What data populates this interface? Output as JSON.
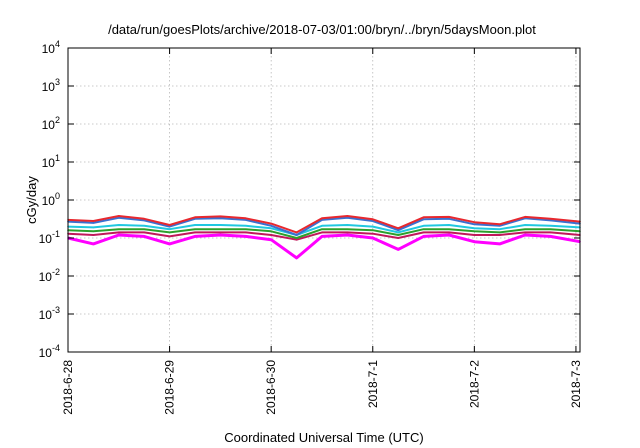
{
  "chart_data": {
    "type": "line",
    "title": "/data/run/goesPlots/archive/2018-07-03/01:00/bryn/../bryn/5daysMoon.plot",
    "xlabel": "Coordinated Universal Time (UTC)",
    "ylabel": "cGy/day",
    "yscale": "log",
    "ylim": [
      0.0001,
      10000
    ],
    "xlim": [
      "2018-06-28",
      "2018-07-03 01:00"
    ],
    "grid": true,
    "x_ticks": [
      "2018-6-28",
      "2018-6-29",
      "2018-6-30",
      "2018-7-1",
      "2018-7-2",
      "2018-7-3"
    ],
    "y_ticks": [
      {
        "base": "10",
        "exp": "-4"
      },
      {
        "base": "10",
        "exp": "-3"
      },
      {
        "base": "10",
        "exp": "-2"
      },
      {
        "base": "10",
        "exp": "-1"
      },
      {
        "base": "10",
        "exp": "0"
      },
      {
        "base": "10",
        "exp": "1"
      },
      {
        "base": "10",
        "exp": "2"
      },
      {
        "base": "10",
        "exp": "3"
      },
      {
        "base": "10",
        "exp": "4"
      }
    ],
    "x_day_values": [
      0,
      0.25,
      0.5,
      0.75,
      1,
      1.25,
      1.5,
      1.75,
      2,
      2.25,
      2.5,
      2.75,
      3,
      3.25,
      3.5,
      3.75,
      4,
      4.25,
      4.5,
      4.75,
      5.04
    ],
    "series": [
      {
        "color": "#e8282e",
        "values": [
          0.3,
          0.28,
          0.38,
          0.32,
          0.22,
          0.35,
          0.37,
          0.33,
          0.24,
          0.14,
          0.33,
          0.38,
          0.31,
          0.18,
          0.35,
          0.36,
          0.26,
          0.23,
          0.36,
          0.32,
          0.27
        ]
      },
      {
        "color": "#3a6fd0",
        "values": [
          0.27,
          0.25,
          0.34,
          0.29,
          0.2,
          0.32,
          0.33,
          0.3,
          0.21,
          0.12,
          0.3,
          0.34,
          0.28,
          0.16,
          0.31,
          0.32,
          0.23,
          0.21,
          0.33,
          0.29,
          0.24
        ]
      },
      {
        "color": "#20c8e0",
        "values": [
          0.2,
          0.19,
          0.22,
          0.21,
          0.17,
          0.22,
          0.22,
          0.21,
          0.18,
          0.12,
          0.21,
          0.22,
          0.2,
          0.14,
          0.21,
          0.22,
          0.18,
          0.17,
          0.22,
          0.21,
          0.19
        ]
      },
      {
        "color": "#2ca02c",
        "values": [
          0.16,
          0.15,
          0.17,
          0.17,
          0.14,
          0.17,
          0.17,
          0.17,
          0.15,
          0.1,
          0.17,
          0.17,
          0.16,
          0.12,
          0.17,
          0.17,
          0.15,
          0.14,
          0.17,
          0.17,
          0.15
        ]
      },
      {
        "color": "#c0185a",
        "values": [
          0.13,
          0.12,
          0.14,
          0.14,
          0.11,
          0.14,
          0.14,
          0.14,
          0.12,
          0.09,
          0.14,
          0.14,
          0.13,
          0.1,
          0.14,
          0.14,
          0.12,
          0.12,
          0.14,
          0.14,
          0.12
        ]
      },
      {
        "color": "#ff00ff",
        "values": [
          0.1,
          0.07,
          0.12,
          0.11,
          0.07,
          0.11,
          0.12,
          0.11,
          0.09,
          0.03,
          0.11,
          0.12,
          0.1,
          0.05,
          0.11,
          0.12,
          0.08,
          0.07,
          0.12,
          0.11,
          0.08
        ]
      }
    ]
  }
}
